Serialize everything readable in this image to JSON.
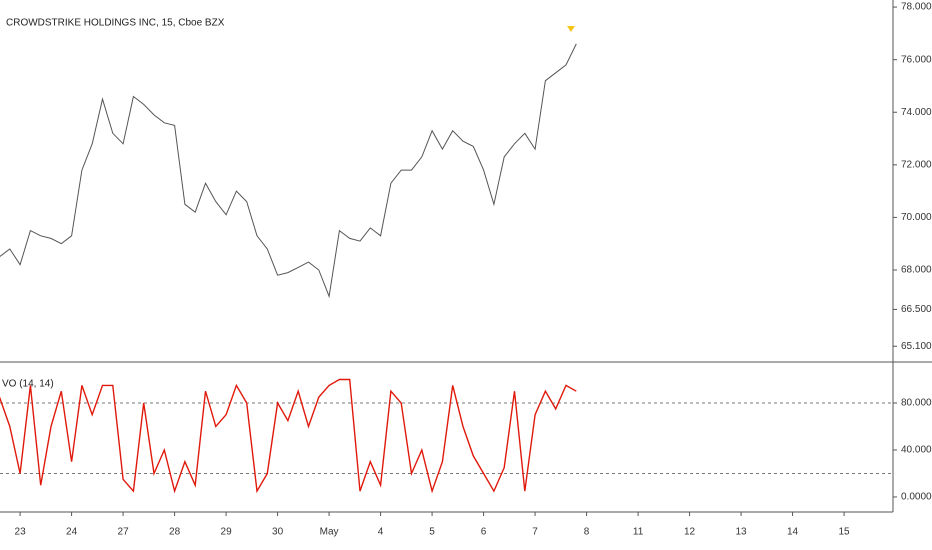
{
  "chart_data": [
    {
      "type": "line",
      "title": "CROWDSTRIKE HOLDINGS INC, 15, Cboe BZX",
      "color": "#555555",
      "x": [
        -0.4,
        -0.2,
        0,
        0.2,
        0.4,
        0.6,
        0.8,
        1.0,
        1.2,
        1.4,
        1.6,
        1.8,
        2.0,
        2.2,
        2.4,
        2.6,
        2.8,
        3.0,
        3.2,
        3.4,
        3.6,
        3.8,
        4.0,
        4.2,
        4.4,
        4.6,
        4.8,
        5.0,
        5.2,
        5.4,
        5.6,
        5.8,
        6.0,
        6.2,
        6.4,
        6.6,
        6.8,
        7.0,
        7.2,
        7.4,
        7.6,
        7.8,
        8.0,
        8.2,
        8.4,
        8.6,
        8.8,
        9.0,
        9.2,
        9.4,
        9.6,
        9.8,
        10.0,
        10.2,
        10.4,
        10.6,
        10.8
      ],
      "values": [
        68.5,
        68.8,
        68.2,
        69.5,
        69.3,
        69.2,
        69.0,
        69.3,
        71.8,
        72.8,
        74.5,
        73.2,
        72.8,
        74.6,
        74.3,
        73.9,
        73.6,
        73.5,
        70.5,
        70.2,
        71.3,
        70.6,
        70.1,
        71.0,
        70.6,
        69.3,
        68.8,
        67.8,
        67.9,
        68.1,
        68.3,
        68.0,
        67.0,
        69.5,
        69.2,
        69.1,
        69.6,
        69.3,
        71.3,
        71.8,
        71.8,
        72.3,
        73.3,
        72.6,
        73.3,
        72.9,
        72.7,
        71.8,
        70.5,
        72.3,
        72.8,
        73.2,
        72.6,
        75.2,
        75.5,
        75.8,
        76.6
      ],
      "xlim": [
        -0.39,
        16.95
      ],
      "ylim": [
        64.5,
        78.27
      ],
      "yticks": [
        {
          "value": 78,
          "label": "78.0000"
        },
        {
          "value": 76,
          "label": "76.0000"
        },
        {
          "value": 74,
          "label": "74.0000"
        },
        {
          "value": 72,
          "label": "72.0000"
        },
        {
          "value": 70,
          "label": "70.0000"
        },
        {
          "value": 68,
          "label": "68.0000"
        },
        {
          "value": 66.5,
          "label": "66.5000"
        },
        {
          "value": 65.1,
          "label": "65.1000"
        }
      ]
    },
    {
      "type": "line",
      "title": "VO (14, 14)",
      "color": "#e0190b",
      "x": [
        -0.4,
        -0.2,
        0,
        0.2,
        0.4,
        0.6,
        0.8,
        1.0,
        1.2,
        1.4,
        1.6,
        1.8,
        2.0,
        2.2,
        2.4,
        2.6,
        2.8,
        3.0,
        3.2,
        3.4,
        3.6,
        3.8,
        4.0,
        4.2,
        4.4,
        4.6,
        4.8,
        5.0,
        5.2,
        5.4,
        5.6,
        5.8,
        6.0,
        6.2,
        6.4,
        6.6,
        6.8,
        7.0,
        7.2,
        7.4,
        7.6,
        7.8,
        8.0,
        8.2,
        8.4,
        8.6,
        8.8,
        9.0,
        9.2,
        9.4,
        9.6,
        9.8,
        10.0,
        10.2,
        10.4,
        10.6,
        10.8
      ],
      "values": [
        85,
        60,
        20,
        95,
        10,
        60,
        90,
        30,
        95,
        70,
        95,
        95,
        15,
        5,
        80,
        20,
        40,
        5,
        30,
        10,
        90,
        60,
        70,
        95,
        80,
        5,
        20,
        80,
        65,
        90,
        60,
        85,
        95,
        100,
        100,
        5,
        30,
        10,
        90,
        80,
        20,
        40,
        5,
        30,
        95,
        60,
        35,
        20,
        5,
        25,
        90,
        5,
        70,
        90,
        75,
        95,
        90
      ],
      "xlim": [
        -0.39,
        16.95
      ],
      "ylim": [
        -12.8,
        114.9
      ],
      "levels": [
        80,
        20
      ],
      "yticks": [
        {
          "value": 80,
          "label": "80.0000"
        },
        {
          "value": 40,
          "label": "40.0000"
        },
        {
          "value": 0,
          "label": "0.0000"
        }
      ],
      "xticks": [
        {
          "value": 0,
          "label": "23"
        },
        {
          "value": 1,
          "label": "24"
        },
        {
          "value": 2,
          "label": "27"
        },
        {
          "value": 3,
          "label": "28"
        },
        {
          "value": 4,
          "label": "29"
        },
        {
          "value": 5,
          "label": "30"
        },
        {
          "value": 6,
          "label": "May"
        },
        {
          "value": 7,
          "label": "4"
        },
        {
          "value": 8,
          "label": "5"
        },
        {
          "value": 9,
          "label": "6"
        },
        {
          "value": 10,
          "label": "7"
        },
        {
          "value": 11,
          "label": "8"
        },
        {
          "value": 12,
          "label": "11"
        },
        {
          "value": 13,
          "label": "12"
        },
        {
          "value": 14,
          "label": "13"
        },
        {
          "value": 15,
          "label": "14"
        },
        {
          "value": 16,
          "label": "15"
        }
      ]
    }
  ]
}
